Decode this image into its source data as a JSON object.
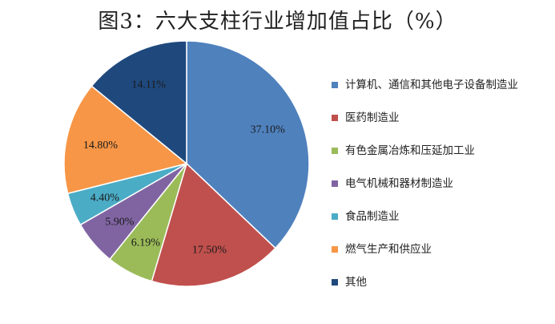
{
  "chart_data": {
    "type": "pie",
    "title": "图3：六大支柱行业增加值占比（%）",
    "slices": [
      {
        "name": "计算机、通信和其他电子设备制造业",
        "value": 37.1,
        "label": "37.10%",
        "color": "#4F81BD"
      },
      {
        "name": "医药制造业",
        "value": 17.5,
        "label": "17.50%",
        "color": "#C0504D"
      },
      {
        "name": "有色金属冶炼和压延加工业",
        "value": 6.19,
        "label": "6.19%",
        "color": "#9BBB59"
      },
      {
        "name": "电气机械和器材制造业",
        "value": 5.9,
        "label": "5.90%",
        "color": "#8064A2"
      },
      {
        "name": "食品制造业",
        "value": 4.4,
        "label": "4.40%",
        "color": "#4BACC6"
      },
      {
        "name": "燃气生产和供应业",
        "value": 14.8,
        "label": "14.80%",
        "color": "#F79646"
      },
      {
        "name": "其他",
        "value": 14.11,
        "label": "14.11%",
        "color": "#1F497D"
      }
    ],
    "legend_position": "right"
  }
}
